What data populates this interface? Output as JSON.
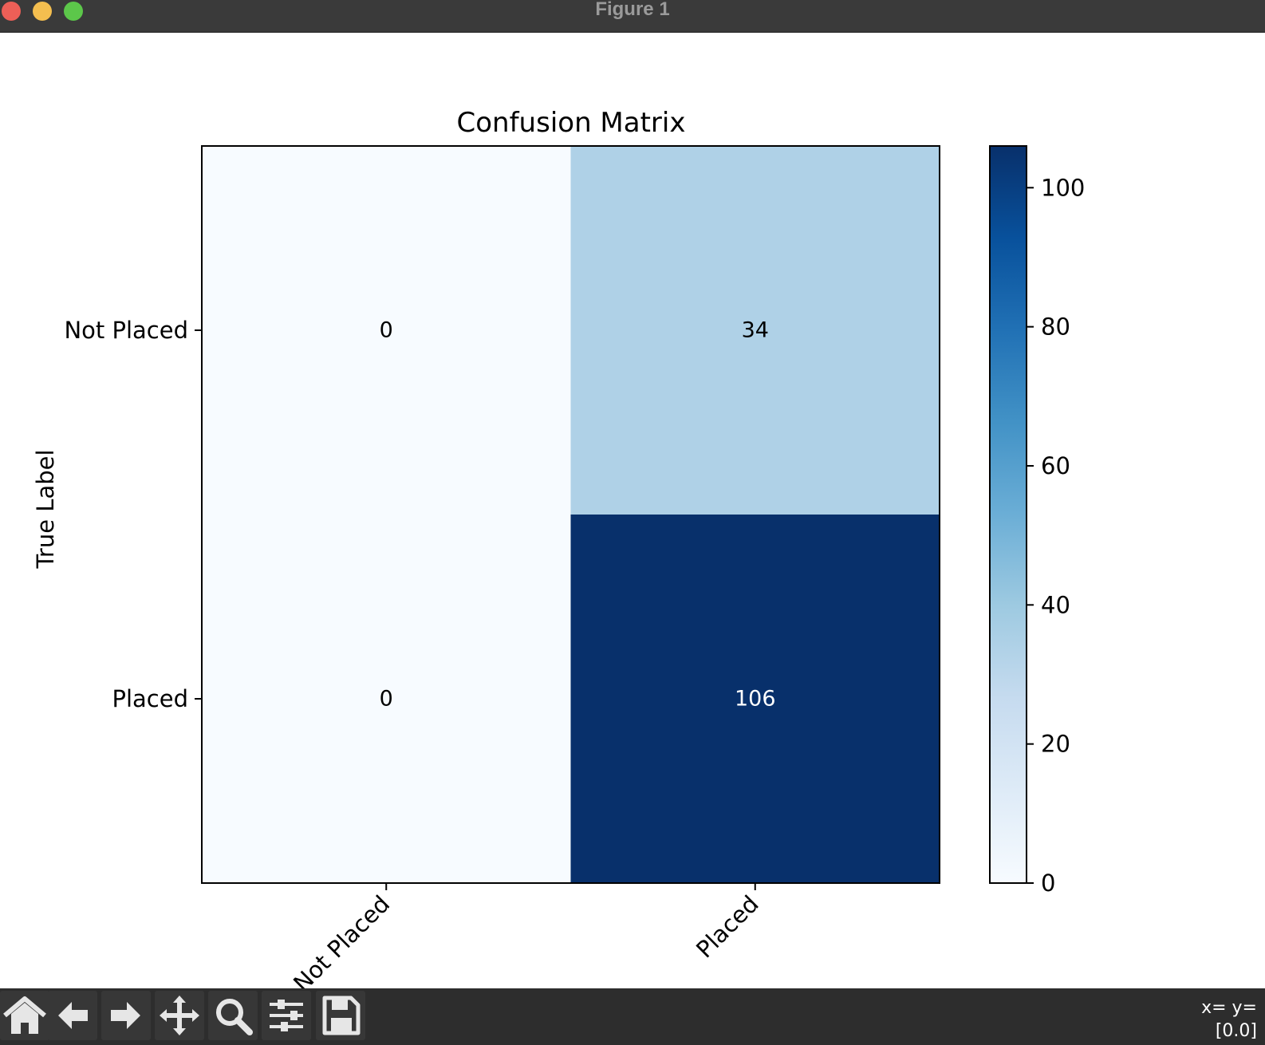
{
  "window": {
    "title": "Figure 1",
    "buttons": [
      "close",
      "minimize",
      "maximize"
    ]
  },
  "chart_data": {
    "type": "heatmap",
    "title": "Confusion Matrix",
    "ylabel": "True Label",
    "xlabel": "",
    "x_categories": [
      "Not Placed",
      "Placed"
    ],
    "y_categories": [
      "Not Placed",
      "Placed"
    ],
    "values": [
      [
        0,
        34
      ],
      [
        0,
        106
      ]
    ],
    "colormap": "Blues",
    "colormap_colors": [
      "#f7fbff",
      "#deebf7",
      "#c6dbef",
      "#9ecae1",
      "#6baed6",
      "#4292c6",
      "#2171b5",
      "#08519c",
      "#08306b"
    ],
    "cell_text_colors": {
      "light": "#000000",
      "dark": "#ffffff"
    },
    "colorbar": {
      "range": [
        0,
        106
      ],
      "ticks": [
        0,
        20,
        40,
        60,
        80,
        100
      ]
    },
    "grid": false
  },
  "toolbar": {
    "tools": [
      {
        "name": "home-icon",
        "label": "Home"
      },
      {
        "name": "back-arrow-icon",
        "label": "Back"
      },
      {
        "name": "forward-arrow-icon",
        "label": "Forward"
      },
      {
        "name": "pan-icon",
        "label": "Pan"
      },
      {
        "name": "zoom-icon",
        "label": "Zoom"
      },
      {
        "name": "configure-subplots-icon",
        "label": "Configure subplots"
      },
      {
        "name": "save-icon",
        "label": "Save"
      }
    ],
    "coords_line1": "x= y=",
    "coords_line2": "[0.0]"
  }
}
